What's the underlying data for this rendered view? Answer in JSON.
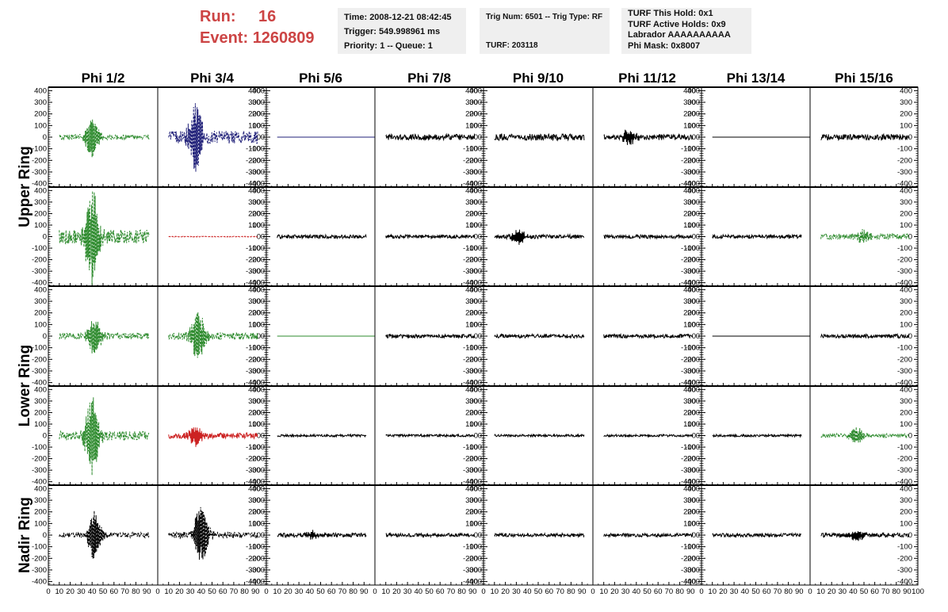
{
  "header": {
    "run_label": "Run:",
    "run_value": "16",
    "event_label": "Event:",
    "event_value": "1260809"
  },
  "info_boxes": {
    "box1": [
      "Time: 2008-12-21 08:42:45",
      "Trigger: 549.998961 ms",
      "Priority: 1 -- Queue: 1"
    ],
    "box2": [
      "Trig Num: 6501 -- Trig Type: RF",
      "",
      "TURF: 203118"
    ],
    "box3": [
      "TURF This Hold: 0x1",
      "TURF Active Holds: 0x9",
      "Labrador AAAAAAAAAA",
      "Phi Mask: 0x8007"
    ]
  },
  "grid": {
    "columns": [
      "Phi 1/2",
      "Phi 3/4",
      "Phi 5/6",
      "Phi 7/8",
      "Phi 9/10",
      "Phi 11/12",
      "Phi 13/14",
      "Phi 15/16"
    ],
    "row_groups": [
      {
        "label": "Upper Ring",
        "rows": [
          0,
          1
        ]
      },
      {
        "label": "Lower Ring",
        "rows": [
          2,
          3
        ]
      },
      {
        "label": "Nadir Ring",
        "rows": [
          4
        ]
      }
    ]
  },
  "colors": {
    "green": "#2e8b2e",
    "blue": "#22227a",
    "red": "#cc2222",
    "black": "#000000",
    "header_red": "#cc4444"
  },
  "chart_data": {
    "type": "line",
    "x_ticks": [
      0,
      10,
      20,
      30,
      40,
      50,
      60,
      70,
      80,
      90,
      100
    ],
    "y_ticks": [
      400,
      300,
      200,
      100,
      0,
      -100,
      -200,
      -300,
      -400
    ],
    "xlim": [
      0,
      100
    ],
    "ylim": [
      -430,
      430
    ],
    "panels": [
      [
        {
          "color": "green",
          "style": "dashed",
          "amp": 22,
          "burst_x": 40,
          "burst_amp": 170
        },
        {
          "color": "blue",
          "style": "dashed",
          "amp": 55,
          "burst_x": 35,
          "burst_amp": 320
        },
        {
          "color": "blue",
          "style": "solid",
          "amp": 0,
          "burst_x": 0,
          "burst_amp": 0
        },
        {
          "color": "black",
          "style": "solid",
          "amp": 25,
          "burst_x": 0,
          "burst_amp": 0
        },
        {
          "color": "black",
          "style": "solid",
          "amp": 28,
          "burst_x": 0,
          "burst_amp": 0
        },
        {
          "color": "black",
          "style": "solid",
          "amp": 25,
          "burst_x": 33,
          "burst_amp": 60
        },
        {
          "color": "black",
          "style": "solid",
          "amp": 0,
          "burst_x": 0,
          "burst_amp": 0
        },
        {
          "color": "black",
          "style": "solid",
          "amp": 25,
          "burst_x": 0,
          "burst_amp": 0
        }
      ],
      [
        {
          "color": "green",
          "style": "dashed",
          "amp": 60,
          "burst_x": 40,
          "burst_amp": 400
        },
        {
          "color": "red",
          "style": "dashed",
          "amp": 3,
          "burst_x": 0,
          "burst_amp": 0
        },
        {
          "color": "black",
          "style": "solid",
          "amp": 16,
          "burst_x": 0,
          "burst_amp": 0
        },
        {
          "color": "black",
          "style": "solid",
          "amp": 16,
          "burst_x": 0,
          "burst_amp": 0
        },
        {
          "color": "black",
          "style": "solid",
          "amp": 18,
          "burst_x": 32,
          "burst_amp": 60
        },
        {
          "color": "black",
          "style": "solid",
          "amp": 16,
          "burst_x": 0,
          "burst_amp": 0
        },
        {
          "color": "black",
          "style": "solid",
          "amp": 16,
          "burst_x": 0,
          "burst_amp": 0
        },
        {
          "color": "green",
          "style": "dashed",
          "amp": 25,
          "burst_x": 50,
          "burst_amp": 50
        }
      ],
      [
        {
          "color": "green",
          "style": "dashed",
          "amp": 28,
          "burst_x": 42,
          "burst_amp": 150
        },
        {
          "color": "green",
          "style": "dashed",
          "amp": 32,
          "burst_x": 37,
          "burst_amp": 210
        },
        {
          "color": "green",
          "style": "solid",
          "amp": 0,
          "burst_x": 0,
          "burst_amp": 0
        },
        {
          "color": "black",
          "style": "solid",
          "amp": 16,
          "burst_x": 0,
          "burst_amp": 0
        },
        {
          "color": "black",
          "style": "solid",
          "amp": 16,
          "burst_x": 0,
          "burst_amp": 0
        },
        {
          "color": "black",
          "style": "solid",
          "amp": 16,
          "burst_x": 0,
          "burst_amp": 0
        },
        {
          "color": "black",
          "style": "solid",
          "amp": 0,
          "burst_x": 0,
          "burst_amp": 0
        },
        {
          "color": "black",
          "style": "solid",
          "amp": 16,
          "burst_x": 0,
          "burst_amp": 0
        }
      ],
      [
        {
          "color": "green",
          "style": "dashed",
          "amp": 40,
          "burst_x": 40,
          "burst_amp": 330
        },
        {
          "color": "red",
          "style": "solid",
          "amp": 25,
          "burst_x": 35,
          "burst_amp": 90
        },
        {
          "color": "black",
          "style": "solid",
          "amp": 10,
          "burst_x": 0,
          "burst_amp": 0
        },
        {
          "color": "black",
          "style": "solid",
          "amp": 10,
          "burst_x": 0,
          "burst_amp": 0
        },
        {
          "color": "black",
          "style": "solid",
          "amp": 10,
          "burst_x": 0,
          "burst_amp": 0
        },
        {
          "color": "black",
          "style": "solid",
          "amp": 10,
          "burst_x": 0,
          "burst_amp": 0
        },
        {
          "color": "black",
          "style": "solid",
          "amp": 10,
          "burst_x": 0,
          "burst_amp": 0
        },
        {
          "color": "green",
          "style": "dashed",
          "amp": 18,
          "burst_x": 43,
          "burst_amp": 70
        }
      ],
      [
        {
          "color": "black",
          "style": "dashed",
          "amp": 22,
          "burst_x": 42,
          "burst_amp": 200
        },
        {
          "color": "black",
          "style": "dashed",
          "amp": 28,
          "burst_x": 40,
          "burst_amp": 250
        },
        {
          "color": "black",
          "style": "solid",
          "amp": 18,
          "burst_x": 42,
          "burst_amp": 30
        },
        {
          "color": "black",
          "style": "solid",
          "amp": 15,
          "burst_x": 0,
          "burst_amp": 0
        },
        {
          "color": "black",
          "style": "solid",
          "amp": 15,
          "burst_x": 0,
          "burst_amp": 0
        },
        {
          "color": "black",
          "style": "solid",
          "amp": 15,
          "burst_x": 0,
          "burst_amp": 0
        },
        {
          "color": "black",
          "style": "solid",
          "amp": 15,
          "burst_x": 0,
          "burst_amp": 0
        },
        {
          "color": "black",
          "style": "solid",
          "amp": 18,
          "burst_x": 43,
          "burst_amp": 50
        }
      ]
    ]
  }
}
